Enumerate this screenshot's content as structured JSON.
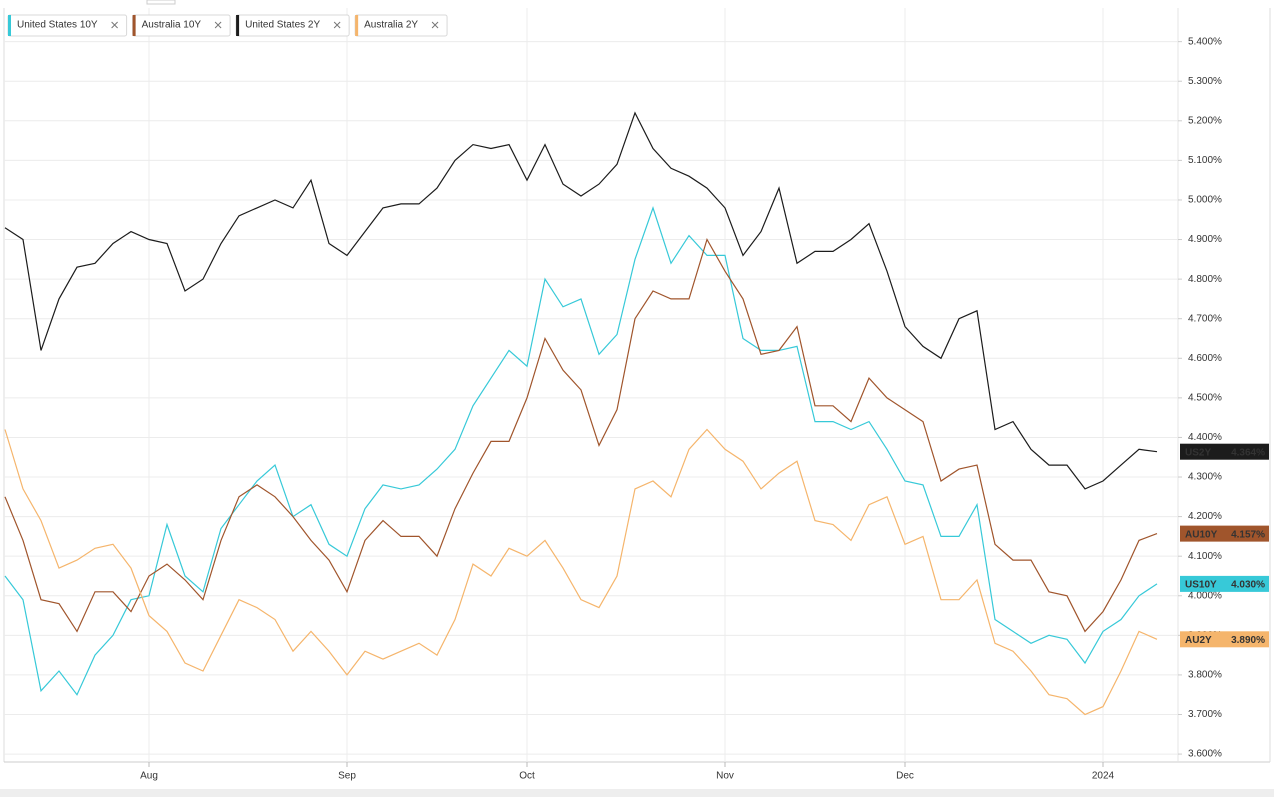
{
  "chart_data": {
    "type": "line",
    "categories": [
      null,
      null,
      null,
      null,
      null,
      null,
      null,
      null,
      "Aug",
      null,
      null,
      null,
      null,
      null,
      null,
      null,
      null,
      null,
      null,
      "Sep",
      null,
      null,
      null,
      null,
      null,
      null,
      null,
      null,
      null,
      "Oct",
      null,
      null,
      null,
      null,
      null,
      null,
      null,
      null,
      null,
      null,
      "Nov",
      null,
      null,
      null,
      null,
      null,
      null,
      null,
      null,
      null,
      "Dec",
      null,
      null,
      null,
      null,
      null,
      null,
      null,
      null,
      null,
      null,
      "2024",
      null,
      null,
      null
    ],
    "ylim": [
      3.58,
      5.485
    ],
    "yticks": [
      {
        "value": 3.6,
        "label": "3.600%"
      },
      {
        "value": 3.7,
        "label": "3.700%"
      },
      {
        "value": 3.8,
        "label": "3.800%"
      },
      {
        "value": 3.9,
        "label": "3.900%"
      },
      {
        "value": 4.0,
        "label": "4.000%"
      },
      {
        "value": 4.1,
        "label": "4.100%"
      },
      {
        "value": 4.2,
        "label": "4.200%"
      },
      {
        "value": 4.3,
        "label": "4.300%"
      },
      {
        "value": 4.4,
        "label": "4.400%"
      },
      {
        "value": 4.5,
        "label": "4.500%"
      },
      {
        "value": 4.6,
        "label": "4.600%"
      },
      {
        "value": 4.7,
        "label": "4.700%"
      },
      {
        "value": 4.8,
        "label": "4.800%"
      },
      {
        "value": 4.9,
        "label": "4.900%"
      },
      {
        "value": 5.0,
        "label": "5.000%"
      },
      {
        "value": 5.1,
        "label": "5.100%"
      },
      {
        "value": 5.2,
        "label": "5.200%"
      },
      {
        "value": 5.3,
        "label": "5.300%"
      },
      {
        "value": 5.4,
        "label": "5.400%"
      }
    ],
    "grid": true,
    "legend": "top-left",
    "series": [
      {
        "name": "United States 10Y",
        "label": "US10Y",
        "color": "#37c9d8",
        "values": [
          4.05,
          3.99,
          3.76,
          3.81,
          3.75,
          3.85,
          3.9,
          3.99,
          4.0,
          4.18,
          4.05,
          4.01,
          4.17,
          4.23,
          4.29,
          4.33,
          4.2,
          4.23,
          4.13,
          4.1,
          4.22,
          4.28,
          4.27,
          4.28,
          4.32,
          4.37,
          4.48,
          4.55,
          4.62,
          4.58,
          4.8,
          4.73,
          4.75,
          4.61,
          4.66,
          4.85,
          4.98,
          4.84,
          4.91,
          4.86,
          4.86,
          4.65,
          4.62,
          4.62,
          4.63,
          4.44,
          4.44,
          4.42,
          4.44,
          4.37,
          4.29,
          4.28,
          4.15,
          4.15,
          4.23,
          3.94,
          3.91,
          3.88,
          3.9,
          3.89,
          3.83,
          3.91,
          3.94,
          4.0,
          4.03
        ],
        "value_labels": [
          null,
          null,
          null,
          null,
          null,
          null,
          null,
          null,
          null,
          null,
          null,
          null,
          null,
          null,
          null,
          null,
          null,
          null,
          null,
          null,
          null,
          null,
          null,
          null,
          null,
          null,
          null,
          null,
          null,
          null,
          null,
          null,
          null,
          null,
          null,
          null,
          null,
          null,
          null,
          null,
          null,
          null,
          null,
          null,
          null,
          null,
          null,
          null,
          null,
          null,
          null,
          null,
          null,
          null,
          null,
          null,
          null,
          null,
          null,
          null,
          null,
          null,
          null,
          null,
          "4.030%"
        ]
      },
      {
        "name": "Australia 10Y",
        "label": "AU10Y",
        "color": "#a0552c",
        "values": [
          4.25,
          4.14,
          3.99,
          3.98,
          3.91,
          4.01,
          4.01,
          3.96,
          4.05,
          4.08,
          4.04,
          3.99,
          4.14,
          4.25,
          4.28,
          4.25,
          4.2,
          4.14,
          4.09,
          4.01,
          4.14,
          4.19,
          4.15,
          4.15,
          4.1,
          4.22,
          4.31,
          4.39,
          4.39,
          4.5,
          4.65,
          4.57,
          4.52,
          4.38,
          4.47,
          4.7,
          4.77,
          4.75,
          4.75,
          4.9,
          4.82,
          4.75,
          4.61,
          4.62,
          4.68,
          4.48,
          4.48,
          4.44,
          4.55,
          4.5,
          4.47,
          4.44,
          4.29,
          4.32,
          4.33,
          4.13,
          4.09,
          4.09,
          4.01,
          4.0,
          3.91,
          3.96,
          4.04,
          4.14,
          4.157
        ],
        "value_labels": [
          null,
          null,
          null,
          null,
          null,
          null,
          null,
          null,
          null,
          null,
          null,
          null,
          null,
          null,
          null,
          null,
          null,
          null,
          null,
          null,
          null,
          null,
          null,
          null,
          null,
          null,
          null,
          null,
          null,
          null,
          null,
          null,
          null,
          null,
          null,
          null,
          null,
          null,
          null,
          null,
          null,
          null,
          null,
          null,
          null,
          null,
          null,
          null,
          null,
          null,
          null,
          null,
          null,
          null,
          null,
          null,
          null,
          null,
          null,
          null,
          null,
          null,
          null,
          null,
          "4.157%"
        ]
      },
      {
        "name": "United States 2Y",
        "label": "US2Y",
        "color": "#1c1c1c",
        "values": [
          4.93,
          4.9,
          4.62,
          4.75,
          4.83,
          4.84,
          4.89,
          4.92,
          4.9,
          4.89,
          4.77,
          4.8,
          4.89,
          4.96,
          4.98,
          5.0,
          4.98,
          5.05,
          4.89,
          4.86,
          4.92,
          4.98,
          4.99,
          4.99,
          5.03,
          5.1,
          5.14,
          5.13,
          5.14,
          5.05,
          5.14,
          5.04,
          5.01,
          5.04,
          5.09,
          5.22,
          5.13,
          5.08,
          5.06,
          5.03,
          4.98,
          4.86,
          4.92,
          5.03,
          4.84,
          4.87,
          4.87,
          4.9,
          4.94,
          4.82,
          4.68,
          4.63,
          4.6,
          4.7,
          4.72,
          4.42,
          4.44,
          4.37,
          4.33,
          4.33,
          4.27,
          4.29,
          4.33,
          4.37,
          4.364
        ],
        "value_labels": [
          null,
          null,
          null,
          null,
          null,
          null,
          null,
          null,
          null,
          null,
          null,
          null,
          null,
          null,
          null,
          null,
          null,
          null,
          null,
          null,
          null,
          null,
          null,
          null,
          null,
          null,
          null,
          null,
          null,
          null,
          null,
          null,
          null,
          null,
          null,
          null,
          null,
          null,
          null,
          null,
          null,
          null,
          null,
          null,
          null,
          null,
          null,
          null,
          null,
          null,
          null,
          null,
          null,
          null,
          null,
          null,
          null,
          null,
          null,
          null,
          null,
          null,
          null,
          null,
          "4.364%"
        ]
      },
      {
        "name": "Australia 2Y",
        "label": "AU2Y",
        "color": "#f5b56c",
        "values": [
          4.42,
          4.27,
          4.19,
          4.07,
          4.09,
          4.12,
          4.13,
          4.07,
          3.95,
          3.91,
          3.83,
          3.81,
          3.9,
          3.99,
          3.97,
          3.94,
          3.86,
          3.91,
          3.86,
          3.8,
          3.86,
          3.84,
          3.86,
          3.88,
          3.85,
          3.94,
          4.08,
          4.05,
          4.12,
          4.1,
          4.14,
          4.07,
          3.99,
          3.97,
          4.05,
          4.27,
          4.29,
          4.25,
          4.37,
          4.42,
          4.37,
          4.34,
          4.27,
          4.31,
          4.34,
          4.19,
          4.18,
          4.14,
          4.23,
          4.25,
          4.13,
          4.15,
          3.99,
          3.99,
          4.04,
          3.88,
          3.86,
          3.81,
          3.75,
          3.74,
          3.7,
          3.72,
          3.81,
          3.91,
          3.89
        ],
        "value_labels": [
          null,
          null,
          null,
          null,
          null,
          null,
          null,
          null,
          null,
          null,
          null,
          null,
          null,
          null,
          null,
          null,
          null,
          null,
          null,
          null,
          null,
          null,
          null,
          null,
          null,
          null,
          null,
          null,
          null,
          null,
          null,
          null,
          null,
          null,
          null,
          null,
          null,
          null,
          null,
          null,
          null,
          null,
          null,
          null,
          null,
          null,
          null,
          null,
          null,
          null,
          null,
          null,
          null,
          null,
          null,
          null,
          null,
          null,
          null,
          null,
          null,
          null,
          null,
          null,
          "3.890%"
        ]
      }
    ]
  }
}
